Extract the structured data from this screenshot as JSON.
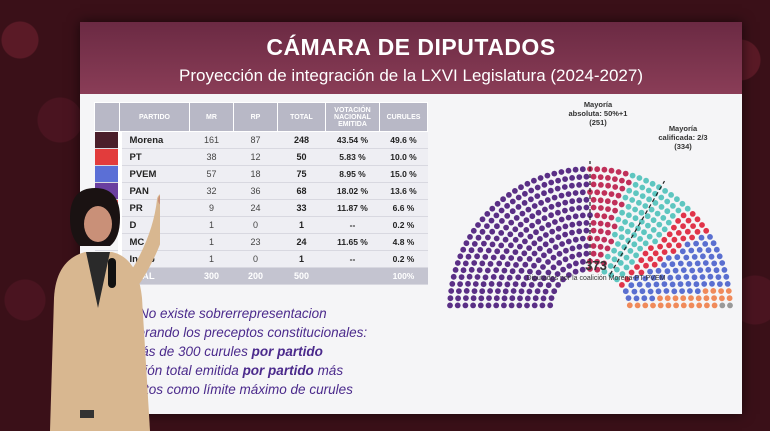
{
  "slide": {
    "title": "CÁMARA DE DIPUTADOS",
    "subtitle": "Proyección de integración de la LXVI Legislatura (2024-2027)"
  },
  "table": {
    "headers": [
      "PARTIDO",
      "MR",
      "RP",
      "TOTAL",
      "VOTACIÓN NACIONAL EMITIDA",
      "CURULES"
    ],
    "rows": [
      {
        "party": "Morena",
        "color": "#4a1e2a",
        "mr": "161",
        "rp": "87",
        "total": "248",
        "vote": "43.54 %",
        "seats": "49.6 %"
      },
      {
        "party": "PT",
        "color": "#e23c3c",
        "mr": "38",
        "rp": "12",
        "total": "50",
        "vote": "5.83 %",
        "seats": "10.0 %"
      },
      {
        "party": "PVEM",
        "color": "#5b6fd6",
        "mr": "57",
        "rp": "18",
        "total": "75",
        "vote": "8.95 %",
        "seats": "15.0 %"
      },
      {
        "party": "PAN",
        "color": "#6a3fa0",
        "mr": "32",
        "rp": "36",
        "total": "68",
        "vote": "18.02 %",
        "seats": "13.6 %"
      },
      {
        "party": "PR",
        "color": "#e66060",
        "mr": "9",
        "rp": "24",
        "total": "33",
        "vote": "11.87 %",
        "seats": "6.6 %"
      },
      {
        "party": "D",
        "color": "#f5f5f5",
        "mr": "1",
        "rp": "0",
        "total": "1",
        "vote": "--",
        "seats": "0.2 %"
      },
      {
        "party": "MC",
        "color": "#f5f5f5",
        "mr": "1",
        "rp": "23",
        "total": "24",
        "vote": "11.65 %",
        "seats": "4.8 %"
      },
      {
        "party": "Indep",
        "color": "#f5f5f5",
        "mr": "1",
        "rp": "0",
        "total": "1",
        "vote": "--",
        "seats": "0.2 %"
      }
    ],
    "total": {
      "party": "OTAL",
      "mr": "300",
      "rp": "200",
      "total": "500",
      "vote": "",
      "seats": "100%"
    }
  },
  "notes": {
    "line1": "No existe sobrerrepresentacion",
    "line2": "derando los preceptos constitucionales:",
    "line3a": "más de 300 curules ",
    "line3b": "por partido",
    "line4a": "ación total emitida ",
    "line4b": "por partido",
    "line4c": " más",
    "line5": "untos como límite máximo de curules"
  },
  "hemicycle": {
    "majority_abs": "Mayoría absoluta: 50%+1 (251)",
    "majority_qual": "Mayoría calificada: 2/3 (334)",
    "coalition_seats": "373",
    "coalition_text": "Diputados por la coalición Morena-PT-PVEM",
    "segments": [
      {
        "name": "Morena",
        "seats": 248,
        "color": "#5a2f86"
      },
      {
        "name": "Morena-extra",
        "seats": 0,
        "color": "#5a2f86"
      },
      {
        "name": "PT",
        "seats": 50,
        "color": "#c0305a"
      },
      {
        "name": "PVEM",
        "seats": 75,
        "color": "#5ec6c0"
      },
      {
        "name": "PR",
        "seats": 33,
        "color": "#e0344a"
      },
      {
        "name": "PAN",
        "seats": 68,
        "color": "#5a6fd0"
      },
      {
        "name": "MC",
        "seats": 24,
        "color": "#f08a5a"
      },
      {
        "name": "Otros",
        "seats": 2,
        "color": "#999999"
      }
    ]
  }
}
